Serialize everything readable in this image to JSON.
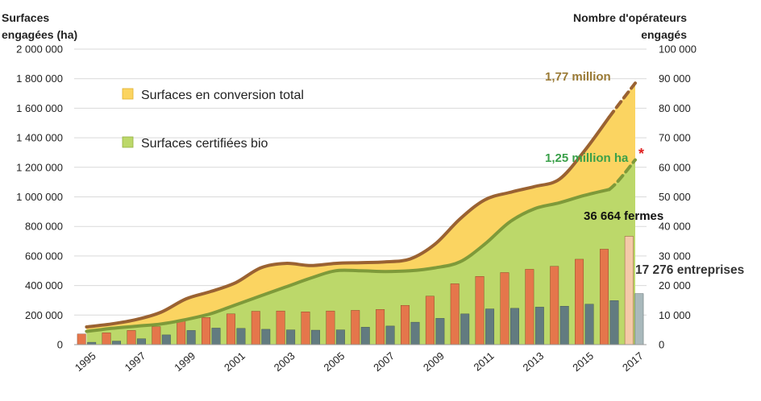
{
  "chart_data": {
    "type": "area+bar",
    "y_left_title_lines": [
      "Surfaces",
      "engagées (ha)"
    ],
    "y_right_title_lines": [
      "Nombre d'opérateurs",
      "engagés"
    ],
    "y_left_ticks": [
      "0",
      "200 000",
      "400 000",
      "600 000",
      "800 000",
      "1 000 000",
      "1 200 000",
      "1 400 000",
      "1 600 000",
      "1 800 000",
      "2 000 000"
    ],
    "y_right_ticks": [
      "0",
      "10 000",
      "20 000",
      "30 000",
      "40 000",
      "50 000",
      "60 000",
      "70 000",
      "80 000",
      "90 000",
      "100 000"
    ],
    "ylim_left": [
      0,
      2000000
    ],
    "ylim_right": [
      0,
      100000
    ],
    "years": [
      1995,
      1996,
      1997,
      1998,
      1999,
      2000,
      2001,
      2002,
      2003,
      2004,
      2005,
      2006,
      2007,
      2008,
      2009,
      2010,
      2011,
      2012,
      2013,
      2014,
      2015,
      2016,
      2017
    ],
    "x_tick_labels": [
      "1995",
      "1997",
      "1999",
      "2001",
      "2003",
      "2005",
      "2007",
      "2009",
      "2011",
      "2013",
      "2015",
      "2017"
    ],
    "legend": [
      {
        "label": "Surfaces en conversion total",
        "color": "#fbd461"
      },
      {
        "label": "Surfaces certifiées bio",
        "color": "#bcd86a"
      }
    ],
    "series": [
      {
        "name": "Surfaces engagées (total)",
        "axis": "left",
        "kind": "area-line",
        "color": "#9a6232",
        "fill": "#fbd461",
        "values": [
          120000,
          140000,
          170000,
          220000,
          310000,
          360000,
          420000,
          520000,
          550000,
          535000,
          550000,
          555000,
          560000,
          580000,
          680000,
          850000,
          980000,
          1030000,
          1070000,
          1120000,
          1310000,
          1540000,
          1770000
        ]
      },
      {
        "name": "Surfaces certifiées bio",
        "axis": "left",
        "kind": "area-line",
        "color": "#7e9a3a",
        "fill": "#bcd86a",
        "values": [
          90000,
          110000,
          125000,
          140000,
          170000,
          210000,
          270000,
          330000,
          390000,
          450000,
          500000,
          500000,
          495000,
          500000,
          520000,
          560000,
          680000,
          830000,
          920000,
          960000,
          1010000,
          1050000,
          1250000
        ]
      },
      {
        "name": "Fermes",
        "axis": "right",
        "kind": "bar",
        "color": "#e5764b",
        "values": [
          3600,
          4000,
          4800,
          6100,
          8000,
          9200,
          10400,
          11300,
          11400,
          11100,
          11400,
          11600,
          11900,
          13300,
          16400,
          20600,
          23100,
          24400,
          25500,
          26500,
          28900,
          32300,
          36664
        ]
      },
      {
        "name": "Entreprises",
        "axis": "right",
        "kind": "bar",
        "color": "#627b80",
        "values": [
          800,
          1200,
          2000,
          3300,
          4800,
          5600,
          5500,
          5200,
          5000,
          4900,
          5000,
          5900,
          6300,
          7600,
          8900,
          10400,
          12100,
          12300,
          12700,
          13000,
          13700,
          14900,
          17276
        ]
      }
    ],
    "annotations": {
      "total_2017": "1,77 million",
      "certified_2017": "1,25 million ha",
      "asterisk": "*",
      "farms_2017": "36 664 fermes",
      "companies_2017": "17 276 entreprises"
    },
    "colors": {
      "total_label": "#9a7a35",
      "certified_label": "#3aa04a",
      "asterisk": "#e02020",
      "farm_bar_2017": "#f4c9a8",
      "company_bar_2017": "#a9b9bc"
    }
  }
}
